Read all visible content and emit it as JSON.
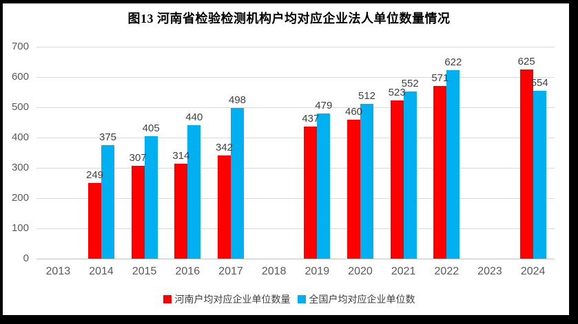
{
  "chart_data": {
    "type": "bar",
    "title": "图13 河南省检验检测机构户均对应企业法人单位数量情况",
    "categories": [
      "2013",
      "2014",
      "2015",
      "2016",
      "2017",
      "2018",
      "2019",
      "2020",
      "2021",
      "2022",
      "2023",
      "2024"
    ],
    "series": [
      {
        "name": "河南户均对应企业单位数量",
        "color": "#FF0000",
        "values": [
          null,
          249,
          307,
          314,
          342,
          null,
          437,
          460,
          523,
          571,
          null,
          625
        ]
      },
      {
        "name": "全国户均对应企业单位数",
        "color": "#00B0F0",
        "values": [
          null,
          375,
          405,
          440,
          498,
          null,
          479,
          512,
          552,
          622,
          null,
          554
        ]
      }
    ],
    "ylim": [
      0,
      700
    ],
    "yticks": [
      0,
      100,
      200,
      300,
      400,
      500,
      600,
      700
    ],
    "grid": true,
    "legend_position": "bottom",
    "data_labels": true,
    "colors": {
      "gridline": "#D9D9D9",
      "axis_line": "#BFBFBF",
      "tick_label": "#595959",
      "data_label": "#404040",
      "title": "#000000",
      "frame_border": "#000000",
      "background": "#FFFFFF"
    }
  }
}
